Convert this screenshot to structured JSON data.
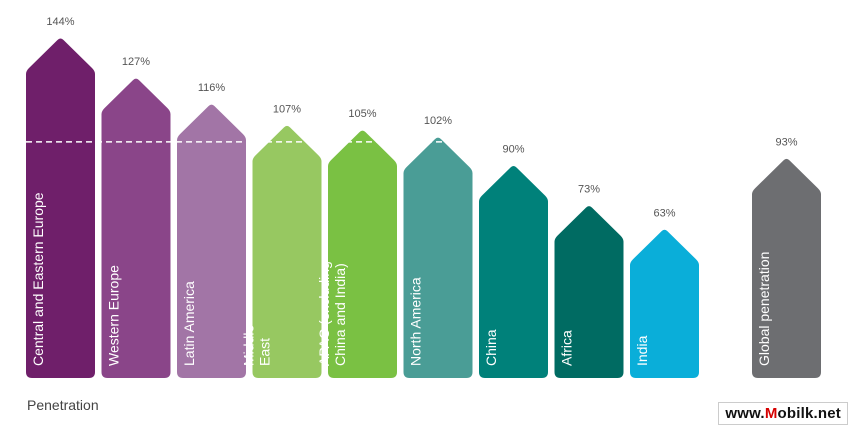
{
  "chart_data": {
    "type": "bar",
    "title": "",
    "xlabel": "Penetration",
    "ylabel": "",
    "ylim": [
      0,
      144
    ],
    "reference_line": 100,
    "grid": false,
    "legend": "none",
    "categories": [
      [
        "Central and Eastern Europe"
      ],
      [
        "Western Europe"
      ],
      [
        "Latin America"
      ],
      [
        "Middle",
        "East"
      ],
      [
        "APAC (excluding",
        "China and India)"
      ],
      [
        "North America"
      ],
      [
        "China"
      ],
      [
        "Africa"
      ],
      [
        "India"
      ],
      [
        "Global penetration"
      ]
    ],
    "values": [
      144,
      127,
      116,
      107,
      105,
      102,
      90,
      73,
      63,
      93
    ],
    "value_labels": [
      "144%",
      "127%",
      "116%",
      "107%",
      "105%",
      "102%",
      "90%",
      "73%",
      "63%",
      "93%"
    ],
    "colors": [
      "#6f1f6a",
      "#8a4589",
      "#a275a6",
      "#97c861",
      "#7ac143",
      "#4a9d96",
      "#00817a",
      "#006b62",
      "#0aaed9",
      "#6d6e71"
    ]
  },
  "watermark": {
    "pre": "www.",
    "highlight": "M",
    "post": "obilk.net"
  }
}
